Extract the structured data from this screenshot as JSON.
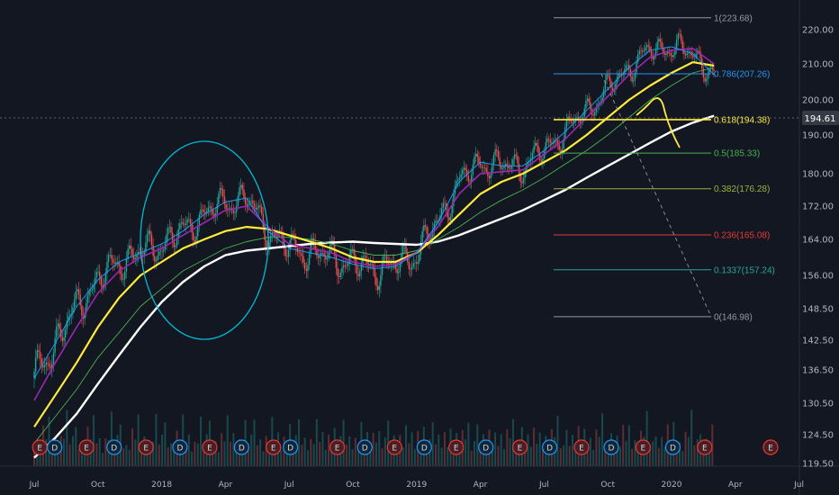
{
  "chart_data": {
    "type": "candlestick",
    "title": "",
    "xlabel": "",
    "ylabel": "",
    "grid": false,
    "ylim": [
      119.5,
      225
    ],
    "y_ticks": [
      "220.00",
      "210.00",
      "200.00",
      "190.00",
      "180.00",
      "172.00",
      "164.00",
      "156.00",
      "148.50",
      "142.50",
      "136.50",
      "130.50",
      "124.50",
      "119.50"
    ],
    "x_ticks": [
      "Jul",
      "Oct",
      "2018",
      "Apr",
      "Jul",
      "Oct",
      "2019",
      "Apr",
      "Jul",
      "Oct",
      "2020",
      "Apr",
      "Jul"
    ],
    "current_price": {
      "label": "194.61",
      "value": 194.61
    },
    "fib_levels": [
      {
        "label": "1(223.68)",
        "value": 223.68,
        "color": "#9598a1"
      },
      {
        "label": "0.786(207.26)",
        "value": 207.26,
        "color": "#2196f3"
      },
      {
        "label": "0.618(194.38)",
        "value": 194.38,
        "color": "#ffeb3b"
      },
      {
        "label": "0.5(185.33)",
        "value": 185.33,
        "color": "#4caf50"
      },
      {
        "label": "0.382(176.28)",
        "value": 176.28,
        "color": "#9cb13e"
      },
      {
        "label": "0.236(165.08)",
        "value": 165.08,
        "color": "#e53935"
      },
      {
        "label": "0.1337(157.24)",
        "value": 157.24,
        "color": "#26a69a"
      },
      {
        "label": "0(146.98)",
        "value": 146.98,
        "color": "#9598a1"
      }
    ],
    "events": [
      {
        "label": "E",
        "t": 0.6,
        "kind": "earnings"
      },
      {
        "label": "D",
        "t": 1.3,
        "kind": "dividend"
      },
      {
        "label": "E",
        "t": 2.8,
        "kind": "earnings"
      },
      {
        "label": "D",
        "t": 4.1,
        "kind": "dividend"
      },
      {
        "label": "E",
        "t": 5.6,
        "kind": "earnings"
      },
      {
        "label": "D",
        "t": 7.2,
        "kind": "dividend"
      },
      {
        "label": "E",
        "t": 8.6,
        "kind": "earnings"
      },
      {
        "label": "D",
        "t": 10.1,
        "kind": "dividend"
      },
      {
        "label": "E",
        "t": 11.6,
        "kind": "earnings"
      },
      {
        "label": "D",
        "t": 12.4,
        "kind": "dividend"
      },
      {
        "label": "E",
        "t": 14.6,
        "kind": "earnings"
      },
      {
        "label": "D",
        "t": 15.9,
        "kind": "dividend"
      },
      {
        "label": "E",
        "t": 17.3,
        "kind": "earnings"
      },
      {
        "label": "D",
        "t": 18.7,
        "kind": "dividend"
      },
      {
        "label": "E",
        "t": 20.2,
        "kind": "earnings"
      },
      {
        "label": "D",
        "t": 21.6,
        "kind": "dividend"
      },
      {
        "label": "E",
        "t": 23.2,
        "kind": "earnings"
      },
      {
        "label": "D",
        "t": 24.6,
        "kind": "dividend"
      },
      {
        "label": "E",
        "t": 26.1,
        "kind": "earnings"
      },
      {
        "label": "D",
        "t": 27.5,
        "kind": "dividend"
      },
      {
        "label": "E",
        "t": 29.0,
        "kind": "earnings"
      },
      {
        "label": "D",
        "t": 30.4,
        "kind": "dividend"
      },
      {
        "label": "E",
        "t": 31.9,
        "kind": "earnings"
      },
      {
        "label": "E",
        "t": 35.0,
        "kind": "earnings"
      }
    ],
    "moving_averages": [
      {
        "color": "#ffffff",
        "points": [
          [
            0,
            120.5
          ],
          [
            1,
            124
          ],
          [
            2,
            128.5
          ],
          [
            3,
            134
          ],
          [
            4,
            139.5
          ],
          [
            5,
            145
          ],
          [
            6,
            150
          ],
          [
            7,
            154.5
          ],
          [
            8,
            158
          ],
          [
            9,
            160.5
          ],
          [
            10,
            161.5
          ],
          [
            11,
            162
          ],
          [
            12,
            162.5
          ],
          [
            13,
            163
          ],
          [
            14,
            163.3
          ],
          [
            15,
            163.5
          ],
          [
            16,
            163.2
          ],
          [
            17,
            163
          ],
          [
            18,
            162.8
          ],
          [
            19,
            163.5
          ],
          [
            20,
            165
          ],
          [
            21,
            167
          ],
          [
            22,
            169
          ],
          [
            23,
            171
          ],
          [
            24,
            173.5
          ],
          [
            25,
            176
          ],
          [
            26,
            179
          ],
          [
            27,
            182
          ],
          [
            28,
            185
          ],
          [
            29,
            188
          ],
          [
            30,
            191
          ],
          [
            31,
            193.5
          ],
          [
            32,
            195.5
          ]
        ]
      },
      {
        "color": "#4caf50",
        "points": [
          [
            0,
            123
          ],
          [
            1,
            128
          ],
          [
            2,
            133
          ],
          [
            3,
            139
          ],
          [
            4,
            144
          ],
          [
            5,
            149
          ],
          [
            6,
            153
          ],
          [
            7,
            157
          ],
          [
            8,
            159.5
          ],
          [
            9,
            162
          ],
          [
            10,
            163.5
          ],
          [
            11,
            164.5
          ],
          [
            12,
            164.5
          ],
          [
            13,
            164
          ],
          [
            14,
            163
          ],
          [
            15,
            161.5
          ],
          [
            16,
            160.5
          ],
          [
            17,
            160.5
          ],
          [
            18,
            161.5
          ],
          [
            19,
            164
          ],
          [
            20,
            167
          ],
          [
            21,
            170.5
          ],
          [
            22,
            173.5
          ],
          [
            23,
            176
          ],
          [
            24,
            179
          ],
          [
            25,
            182.5
          ],
          [
            26,
            186
          ],
          [
            27,
            190
          ],
          [
            28,
            195
          ],
          [
            29,
            200
          ],
          [
            30,
            204
          ],
          [
            31,
            207.5
          ],
          [
            32,
            209
          ]
        ]
      },
      {
        "color": "#ffeb3b",
        "points": [
          [
            0,
            126
          ],
          [
            1,
            132
          ],
          [
            2,
            138
          ],
          [
            3,
            145
          ],
          [
            4,
            151
          ],
          [
            5,
            156
          ],
          [
            6,
            159
          ],
          [
            7,
            162
          ],
          [
            8,
            164
          ],
          [
            9,
            166
          ],
          [
            10,
            167
          ],
          [
            11,
            166.5
          ],
          [
            12,
            165
          ],
          [
            13,
            163.5
          ],
          [
            14,
            162
          ],
          [
            15,
            160
          ],
          [
            16,
            159
          ],
          [
            17,
            159
          ],
          [
            18,
            161
          ],
          [
            19,
            165
          ],
          [
            20,
            170
          ],
          [
            21,
            175
          ],
          [
            22,
            178
          ],
          [
            23,
            180
          ],
          [
            24,
            183
          ],
          [
            25,
            186
          ],
          [
            26,
            190
          ],
          [
            27,
            195
          ],
          [
            28,
            200
          ],
          [
            29,
            204
          ],
          [
            30,
            207.5
          ],
          [
            31,
            210.5
          ],
          [
            32,
            209.5
          ]
        ]
      },
      {
        "color": "#9c27b0",
        "points": [
          [
            0,
            131
          ],
          [
            1,
            138
          ],
          [
            2,
            145
          ],
          [
            3,
            152
          ],
          [
            4,
            157
          ],
          [
            5,
            160
          ],
          [
            6,
            162
          ],
          [
            7,
            165
          ],
          [
            8,
            168
          ],
          [
            9,
            171
          ],
          [
            10,
            172
          ],
          [
            11,
            167
          ],
          [
            12,
            163
          ],
          [
            13,
            162
          ],
          [
            14,
            161
          ],
          [
            15,
            159
          ],
          [
            16,
            158
          ],
          [
            17,
            158.5
          ],
          [
            18,
            161
          ],
          [
            19,
            167
          ],
          [
            20,
            175
          ],
          [
            21,
            180
          ],
          [
            22,
            180.5
          ],
          [
            23,
            181
          ],
          [
            24,
            185
          ],
          [
            25,
            189
          ],
          [
            26,
            195
          ],
          [
            27,
            201
          ],
          [
            28,
            207
          ],
          [
            29,
            212
          ],
          [
            30,
            214
          ],
          [
            31,
            214.5
          ],
          [
            32,
            210
          ]
        ]
      },
      {
        "color": "#2196f3",
        "points": [
          [
            0,
            135
          ],
          [
            1,
            142
          ],
          [
            2,
            149
          ],
          [
            3,
            155
          ],
          [
            4,
            159
          ],
          [
            5,
            161
          ],
          [
            6,
            163
          ],
          [
            7,
            166
          ],
          [
            8,
            170
          ],
          [
            9,
            173
          ],
          [
            10,
            174
          ],
          [
            11,
            166
          ],
          [
            12,
            162
          ],
          [
            13,
            161
          ],
          [
            14,
            160
          ],
          [
            15,
            158.5
          ],
          [
            16,
            157.5
          ],
          [
            17,
            158
          ],
          [
            18,
            161
          ],
          [
            19,
            168
          ],
          [
            20,
            178
          ],
          [
            21,
            183
          ],
          [
            22,
            182
          ],
          [
            23,
            182
          ],
          [
            24,
            186
          ],
          [
            25,
            191
          ],
          [
            26,
            197
          ],
          [
            27,
            203
          ],
          [
            28,
            209
          ],
          [
            29,
            214
          ],
          [
            30,
            215
          ],
          [
            31,
            213
          ],
          [
            32,
            207
          ]
        ]
      }
    ],
    "volume_cycle": [
      0.3,
      0.5,
      0.25,
      0.7,
      0.4,
      0.9,
      0.35,
      0.55,
      0.2,
      0.6,
      0.45,
      1.0,
      0.3,
      0.5,
      0.8
    ]
  }
}
